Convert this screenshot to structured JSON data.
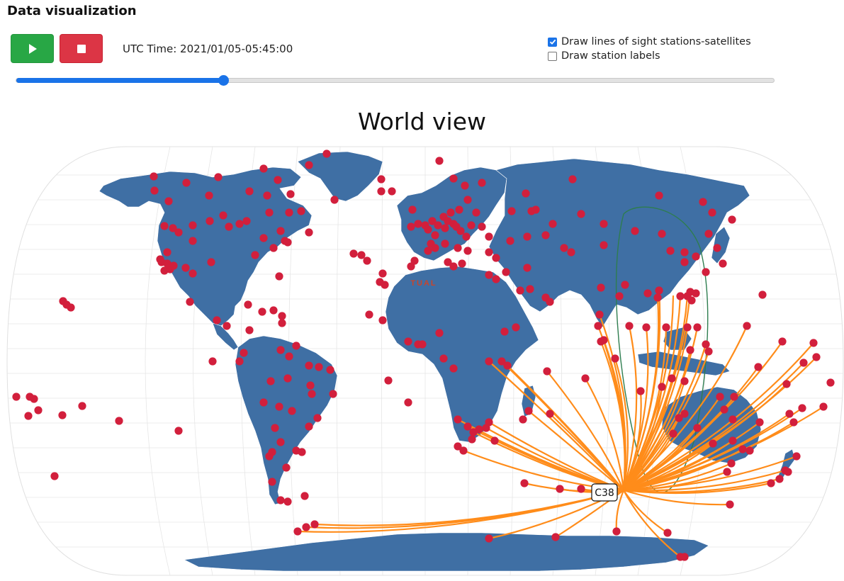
{
  "page": {
    "heading": "Data visualization"
  },
  "controls": {
    "play_icon": "play-icon",
    "stop_icon": "stop-icon",
    "utc_label": "UTC Time: 2021/01/05-05:45:00",
    "los_label": "Draw lines of sight stations-satellites",
    "los_checked": true,
    "labels_label": "Draw station labels",
    "labels_checked": false,
    "play_color": "#28a745",
    "stop_color": "#dc3545"
  },
  "timeline": {
    "progress": 0.274
  },
  "map": {
    "title": "World view",
    "ocean_color": "#ffffff",
    "land_color": "#3f6fa4",
    "station_color": "#d21f3c",
    "los_color": "#ff8c1a",
    "orbit_color": "#2e7d4f",
    "satellite_label": "C38",
    "faint_label": "TUAL"
  }
}
